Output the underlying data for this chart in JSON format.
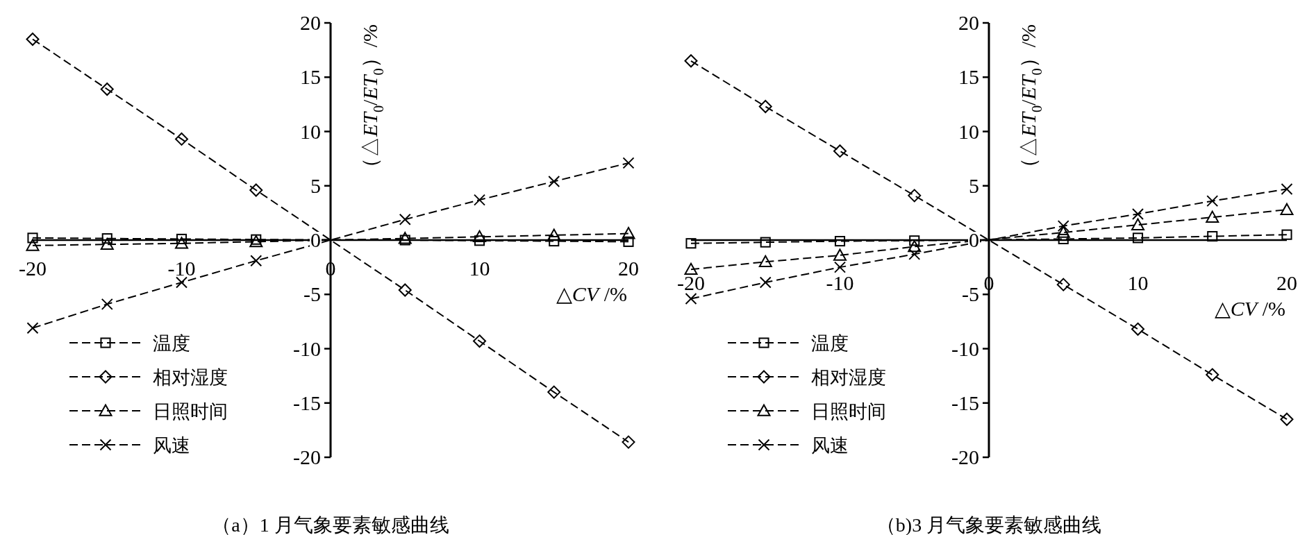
{
  "chart_data": [
    {
      "type": "line",
      "title": "（a）1 月气象要素敏感曲线",
      "xlabel": "△CV /%",
      "ylabel": "（△ET$_{0}$/ET$_{0}$）/%",
      "x": [
        -20,
        -15,
        -10,
        -5,
        5,
        10,
        15,
        20
      ],
      "series": [
        {
          "name": "温度",
          "color": "#000000",
          "marker": "square",
          "values": [
            0.2,
            0.15,
            0.1,
            0.05,
            0,
            -0.05,
            -0.1,
            -0.15
          ]
        },
        {
          "name": "相对湿度",
          "color": "#000000",
          "marker": "diamond",
          "values": [
            18.5,
            13.9,
            9.3,
            4.6,
            -4.6,
            -9.3,
            -14.0,
            -18.6
          ]
        },
        {
          "name": "日照时间",
          "color": "#000000",
          "marker": "triangle",
          "values": [
            -0.5,
            -0.4,
            -0.3,
            -0.15,
            0.15,
            0.3,
            0.45,
            0.6
          ]
        },
        {
          "name": "风速",
          "color": "#000000",
          "marker": "cross",
          "values": [
            -8.1,
            -5.9,
            -3.9,
            -1.9,
            1.9,
            3.7,
            5.4,
            7.1
          ]
        }
      ],
      "xlim": [
        -20,
        20
      ],
      "ylim": [
        -20,
        20
      ],
      "xticks": [
        -20,
        -10,
        0,
        10,
        20
      ],
      "yticks": [
        -20,
        -15,
        -10,
        -5,
        0,
        5,
        10,
        15,
        20
      ],
      "line_style": "dashed",
      "legend": "bottom left"
    },
    {
      "type": "line",
      "title": "（b)3 月气象要素敏感曲线",
      "xlabel": "△CV /%",
      "ylabel": "（△ET$_{0}$/ET$_{0}$）/%",
      "x": [
        -20,
        -15,
        -10,
        -5,
        5,
        10,
        15,
        20
      ],
      "series": [
        {
          "name": "温度",
          "color": "#000000",
          "marker": "square",
          "values": [
            -0.3,
            -0.2,
            -0.1,
            -0.05,
            0.1,
            0.2,
            0.35,
            0.5
          ]
        },
        {
          "name": "相对湿度",
          "color": "#000000",
          "marker": "diamond",
          "values": [
            16.5,
            12.3,
            8.2,
            4.1,
            -4.1,
            -8.2,
            -12.4,
            -16.5
          ]
        },
        {
          "name": "日照时间",
          "color": "#000000",
          "marker": "triangle",
          "values": [
            -2.7,
            -2.0,
            -1.4,
            -0.6,
            0.7,
            1.4,
            2.1,
            2.8
          ]
        },
        {
          "name": "风速",
          "color": "#000000",
          "marker": "cross",
          "values": [
            -5.4,
            -3.9,
            -2.5,
            -1.3,
            1.3,
            2.4,
            3.6,
            4.7
          ]
        }
      ],
      "xlim": [
        -20,
        20
      ],
      "ylim": [
        -20,
        20
      ],
      "xticks": [
        -20,
        -10,
        0,
        10,
        20
      ],
      "yticks": [
        -20,
        -15,
        -10,
        -5,
        0,
        5,
        10,
        15,
        20
      ],
      "line_style": "dashed",
      "legend": "bottom left"
    }
  ]
}
